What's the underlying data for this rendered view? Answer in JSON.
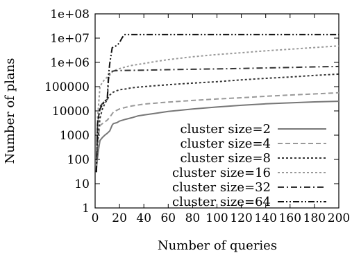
{
  "chart_data": {
    "type": "line",
    "title": "",
    "xlabel": "Number of queries",
    "ylabel": "Number of plans",
    "xlim": [
      0,
      200
    ],
    "ylim": [
      1,
      100000000
    ],
    "yscale": "log",
    "grid": false,
    "legend_position": "bottom-right",
    "x_ticks": [
      "0",
      "20",
      "40",
      "60",
      "80",
      "100",
      "120",
      "140",
      "160",
      "180",
      "200"
    ],
    "y_ticks": [
      "1",
      "10",
      "100",
      "1000",
      "10000",
      "100000",
      "1e+06",
      "1e+07",
      "1e+08"
    ],
    "series": [
      {
        "name": "cluster size=2",
        "color": "#777777",
        "dash": "solid",
        "x": [
          1,
          2,
          3,
          4,
          6,
          8,
          10,
          12,
          14,
          15,
          18,
          20,
          25,
          30,
          35,
          40,
          50,
          60,
          80,
          100,
          120,
          140,
          160,
          180,
          200
        ],
        "y": [
          40,
          120,
          300,
          600,
          800,
          1000,
          1200,
          1500,
          2600,
          3000,
          3300,
          3800,
          4500,
          5200,
          6200,
          6800,
          8000,
          9500,
          12000,
          14500,
          17000,
          19500,
          21500,
          23500,
          25000
        ]
      },
      {
        "name": "cluster size=4",
        "color": "#999999",
        "dash": "dashed",
        "x": [
          1,
          2,
          3,
          4,
          6,
          8,
          10,
          12,
          15,
          20,
          25,
          30,
          40,
          50,
          60,
          80,
          100,
          120,
          140,
          160,
          180,
          200
        ],
        "y": [
          30,
          300,
          1200,
          2500,
          3000,
          3500,
          4200,
          5500,
          9000,
          12000,
          14000,
          16000,
          19000,
          21000,
          23000,
          27000,
          31000,
          35000,
          40000,
          45000,
          50000,
          56000
        ]
      },
      {
        "name": "cluster size=8",
        "color": "#333333",
        "dash": "dotted",
        "x": [
          1,
          2,
          4,
          6,
          8,
          10,
          12,
          15,
          20,
          25,
          30,
          40,
          50,
          60,
          80,
          100,
          120,
          140,
          160,
          180,
          200
        ],
        "y": [
          30,
          500,
          5000,
          12000,
          20000,
          30000,
          45000,
          60000,
          75000,
          80000,
          90000,
          100000,
          110000,
          120000,
          140000,
          160000,
          190000,
          220000,
          250000,
          290000,
          330000
        ]
      },
      {
        "name": "cluster size=16",
        "color": "#999999",
        "dash": "dotted",
        "x": [
          1,
          2,
          4,
          6,
          8,
          10,
          12,
          15,
          20,
          25,
          30,
          40,
          50,
          60,
          80,
          100,
          120,
          140,
          160,
          180,
          200
        ],
        "y": [
          30,
          5000,
          100000,
          150000,
          200000,
          250000,
          300000,
          450000,
          550000,
          650000,
          750000,
          900000,
          1100000,
          1300000,
          1700000,
          2100000,
          2500000,
          3000000,
          3500000,
          4100000,
          4800000
        ]
      },
      {
        "name": "cluster size=32",
        "color": "#333333",
        "dash": "dashdot",
        "x": [
          1,
          2,
          4,
          6,
          8,
          10,
          11,
          12,
          14,
          16,
          20,
          30,
          40,
          60,
          80,
          100,
          120,
          140,
          160,
          180,
          200
        ],
        "y": [
          30,
          3000,
          15000,
          20000,
          25000,
          30000,
          200000,
          400000,
          430000,
          450000,
          460000,
          470000,
          480000,
          500000,
          520000,
          540000,
          560000,
          590000,
          620000,
          650000,
          680000
        ]
      },
      {
        "name": "cluster size=64",
        "color": "#111111",
        "dash": "dashdotdot",
        "x": [
          1,
          2,
          4,
          6,
          8,
          10,
          11,
          12,
          14,
          16,
          18,
          20,
          22,
          24,
          30,
          50,
          100,
          150,
          200
        ],
        "y": [
          30,
          3000,
          12000,
          18000,
          25000,
          35000,
          300000,
          900000,
          4000000,
          4500000,
          5000000,
          6500000,
          10000000,
          14000000,
          14000000,
          14000000,
          14000000,
          14000000,
          14000000
        ]
      }
    ]
  }
}
